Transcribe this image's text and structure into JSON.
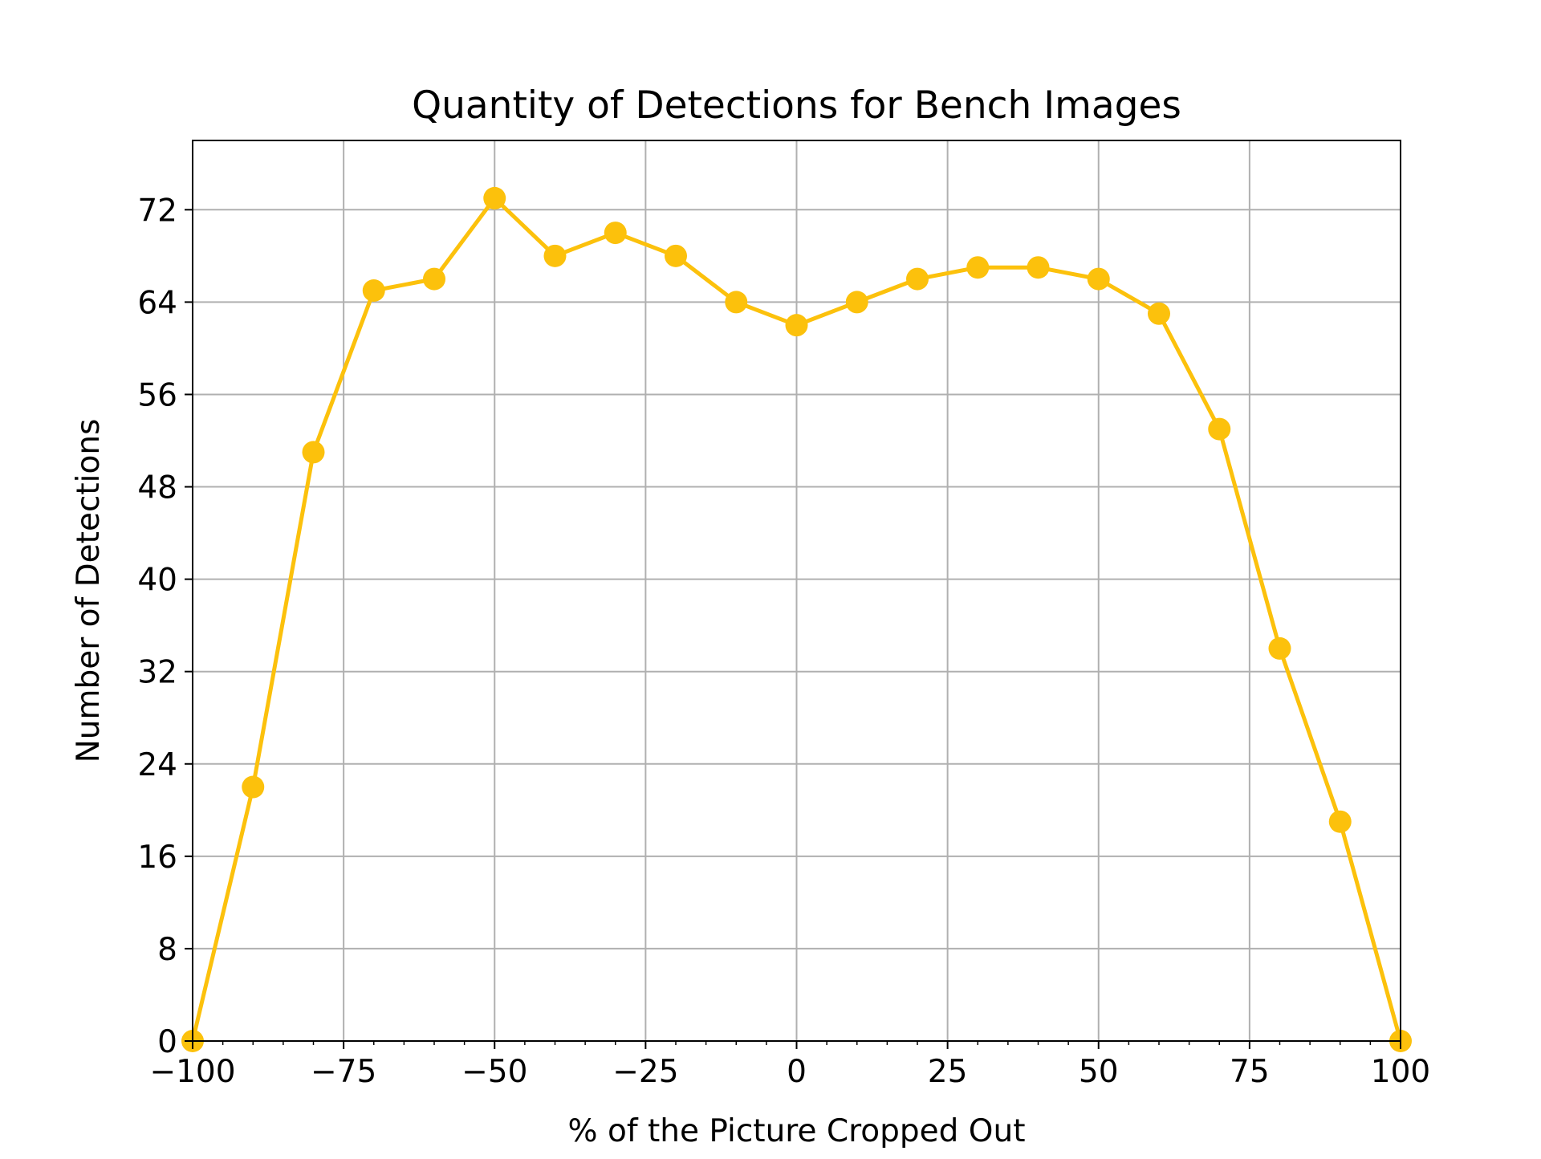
{
  "chart_data": {
    "type": "line",
    "title": "Quantity of Detections for Bench Images",
    "xlabel": "% of the Picture Cropped Out",
    "ylabel": "Number of Detections",
    "xlim": [
      -100,
      100
    ],
    "ylim": [
      0,
      78
    ],
    "x_ticks": [
      -100,
      -75,
      -50,
      -25,
      0,
      25,
      50,
      75,
      100
    ],
    "x_tick_labels": [
      "−100",
      "−75",
      "−50",
      "−25",
      "0",
      "25",
      "50",
      "75",
      "100"
    ],
    "y_ticks": [
      0,
      8,
      16,
      24,
      32,
      40,
      48,
      56,
      64,
      72
    ],
    "y_tick_labels": [
      "0",
      "8",
      "16",
      "24",
      "32",
      "40",
      "48",
      "56",
      "64",
      "72"
    ],
    "grid": true,
    "series": [
      {
        "color": "#fcc10c",
        "marker": "circle",
        "x": [
          -100,
          -90,
          -80,
          -70,
          -60,
          -50,
          -40,
          -30,
          -20,
          -10,
          0,
          10,
          20,
          30,
          40,
          50,
          60,
          70,
          80,
          90,
          100
        ],
        "y": [
          0,
          22,
          51,
          65,
          66,
          73,
          68,
          70,
          68,
          64,
          62,
          64,
          66,
          67,
          67,
          66,
          63,
          53,
          34,
          19,
          0
        ]
      }
    ]
  }
}
